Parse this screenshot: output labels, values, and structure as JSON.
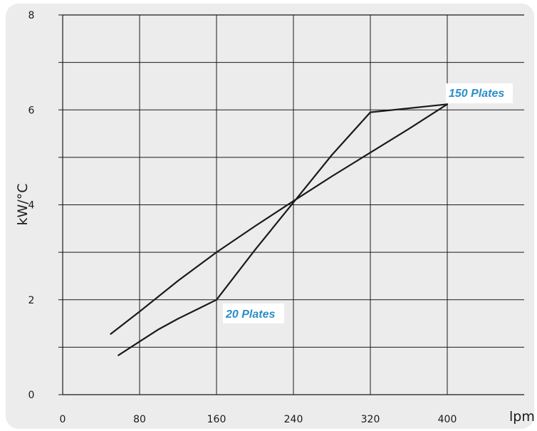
{
  "chart_data": {
    "type": "line",
    "title": "",
    "xlabel": "lpm",
    "ylabel": "kW/°C",
    "xlim": [
      0,
      400
    ],
    "ylim": [
      0,
      8
    ],
    "x_ticks": [
      0,
      80,
      160,
      240,
      320,
      400
    ],
    "y_ticks": [
      0,
      2,
      4,
      6,
      8
    ],
    "grid": true,
    "legend": "none",
    "series": [
      {
        "name": "150 Plates",
        "color": "#1a1a1a",
        "points": [
          [
            50,
            1.28
          ],
          [
            80,
            1.75
          ],
          [
            120,
            2.4
          ],
          [
            160,
            3.0
          ],
          [
            200,
            3.55
          ],
          [
            240,
            4.08
          ],
          [
            280,
            4.6
          ],
          [
            320,
            5.1
          ],
          [
            360,
            5.6
          ],
          [
            400,
            6.12
          ]
        ]
      },
      {
        "name": "20 Plates",
        "color": "#1a1a1a",
        "points": [
          [
            58,
            0.83
          ],
          [
            80,
            1.12
          ],
          [
            100,
            1.38
          ],
          [
            120,
            1.6
          ],
          [
            140,
            1.8
          ],
          [
            160,
            2.0
          ],
          [
            200,
            3.05
          ],
          [
            240,
            4.05
          ],
          [
            280,
            5.05
          ],
          [
            320,
            5.95
          ],
          [
            400,
            6.12
          ]
        ]
      }
    ],
    "annotations": [
      {
        "text": "150 Plates",
        "x": 404,
        "y": 6.28
      },
      {
        "text": "20 Plates",
        "x": 167,
        "y": 1.75
      }
    ]
  }
}
